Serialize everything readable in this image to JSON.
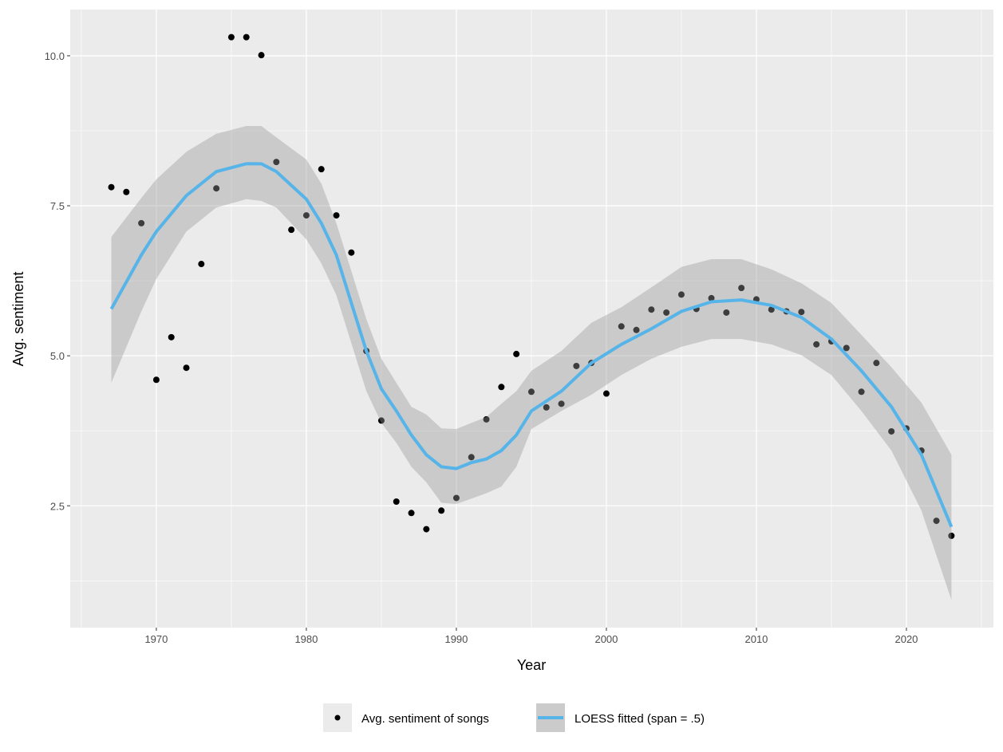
{
  "chart_data": {
    "type": "scatter",
    "xlabel": "Year",
    "ylabel": "Avg. sentiment",
    "xlim": [
      1964.26,
      2025.8
    ],
    "ylim": [
      0.47,
      10.77
    ],
    "x_ticks": [
      1970,
      1980,
      1990,
      2000,
      2010,
      2020
    ],
    "y_ticks": [
      2.5,
      5.0,
      7.5,
      10.0
    ],
    "y_tick_labels": [
      "2.5",
      "5.0",
      "7.5",
      "10.0"
    ],
    "grid": true,
    "legend_position": "bottom",
    "colors": {
      "points": "#000000",
      "line": "#56b4e9",
      "ribbon": "#999999",
      "panel": "#ebebeb"
    },
    "series": [
      {
        "name": "Avg. sentiment of songs",
        "type": "scatter",
        "x": [
          1967,
          1968,
          1969,
          1970,
          1971,
          1972,
          1973,
          1974,
          1975,
          1976,
          1977,
          1978,
          1979,
          1980,
          1981,
          1982,
          1983,
          1984,
          1985,
          1986,
          1987,
          1988,
          1989,
          1990,
          1991,
          1992,
          1993,
          1994,
          1995,
          1996,
          1997,
          1998,
          1999,
          2000,
          2001,
          2002,
          2003,
          2004,
          2005,
          2006,
          2007,
          2008,
          2009,
          2010,
          2011,
          2012,
          2013,
          2014,
          2015,
          2016,
          2017,
          2018,
          2019,
          2020,
          2021,
          2022,
          2023
        ],
        "y": [
          7.81,
          7.73,
          7.21,
          4.6,
          5.31,
          4.8,
          6.53,
          7.79,
          10.31,
          10.31,
          10.01,
          8.23,
          7.1,
          7.34,
          8.11,
          7.34,
          6.72,
          5.08,
          3.92,
          2.57,
          2.38,
          2.11,
          2.42,
          2.63,
          3.31,
          3.94,
          4.48,
          5.03,
          4.4,
          4.14,
          4.2,
          4.83,
          4.88,
          4.37,
          5.49,
          5.43,
          5.77,
          5.72,
          6.02,
          5.78,
          5.96,
          5.72,
          6.13,
          5.94,
          5.77,
          5.74,
          5.73,
          5.19,
          5.24,
          5.13,
          4.4,
          4.88,
          3.74,
          3.79,
          3.42,
          2.25,
          2.0
        ]
      },
      {
        "name": "LOESS fitted (span = .5)",
        "type": "line",
        "x": [
          1967,
          1969,
          1970,
          1972,
          1974,
          1976,
          1977,
          1978,
          1980,
          1981,
          1982,
          1983,
          1984,
          1985,
          1986,
          1987,
          1988,
          1989,
          1990,
          1991,
          1992,
          1993,
          1994,
          1995,
          1997,
          1999,
          2001,
          2003,
          2005,
          2007,
          2009,
          2011,
          2013,
          2015,
          2017,
          2019,
          2021,
          2023
        ],
        "y": [
          5.78,
          6.68,
          7.07,
          7.67,
          8.07,
          8.2,
          8.2,
          8.07,
          7.61,
          7.21,
          6.68,
          5.88,
          5.08,
          4.45,
          4.08,
          3.68,
          3.35,
          3.15,
          3.12,
          3.22,
          3.28,
          3.42,
          3.68,
          4.08,
          4.41,
          4.88,
          5.19,
          5.45,
          5.74,
          5.9,
          5.93,
          5.84,
          5.64,
          5.28,
          4.75,
          4.15,
          3.35,
          2.15
        ],
        "upper": [
          6.98,
          7.63,
          7.94,
          8.4,
          8.7,
          8.83,
          8.83,
          8.64,
          8.27,
          7.87,
          7.21,
          6.41,
          5.61,
          4.95,
          4.55,
          4.15,
          4.02,
          3.79,
          3.78,
          3.88,
          3.98,
          4.2,
          4.41,
          4.75,
          5.08,
          5.55,
          5.81,
          6.14,
          6.48,
          6.61,
          6.61,
          6.44,
          6.21,
          5.88,
          5.35,
          4.81,
          4.22,
          3.35
        ],
        "lower": [
          4.55,
          5.74,
          6.28,
          7.07,
          7.47,
          7.61,
          7.58,
          7.47,
          6.94,
          6.54,
          6.01,
          5.21,
          4.41,
          3.88,
          3.55,
          3.15,
          2.89,
          2.55,
          2.53,
          2.62,
          2.71,
          2.82,
          3.15,
          3.78,
          4.08,
          4.35,
          4.68,
          4.95,
          5.15,
          5.28,
          5.28,
          5.19,
          5.01,
          4.68,
          4.08,
          3.42,
          2.42,
          0.93
        ]
      }
    ]
  }
}
